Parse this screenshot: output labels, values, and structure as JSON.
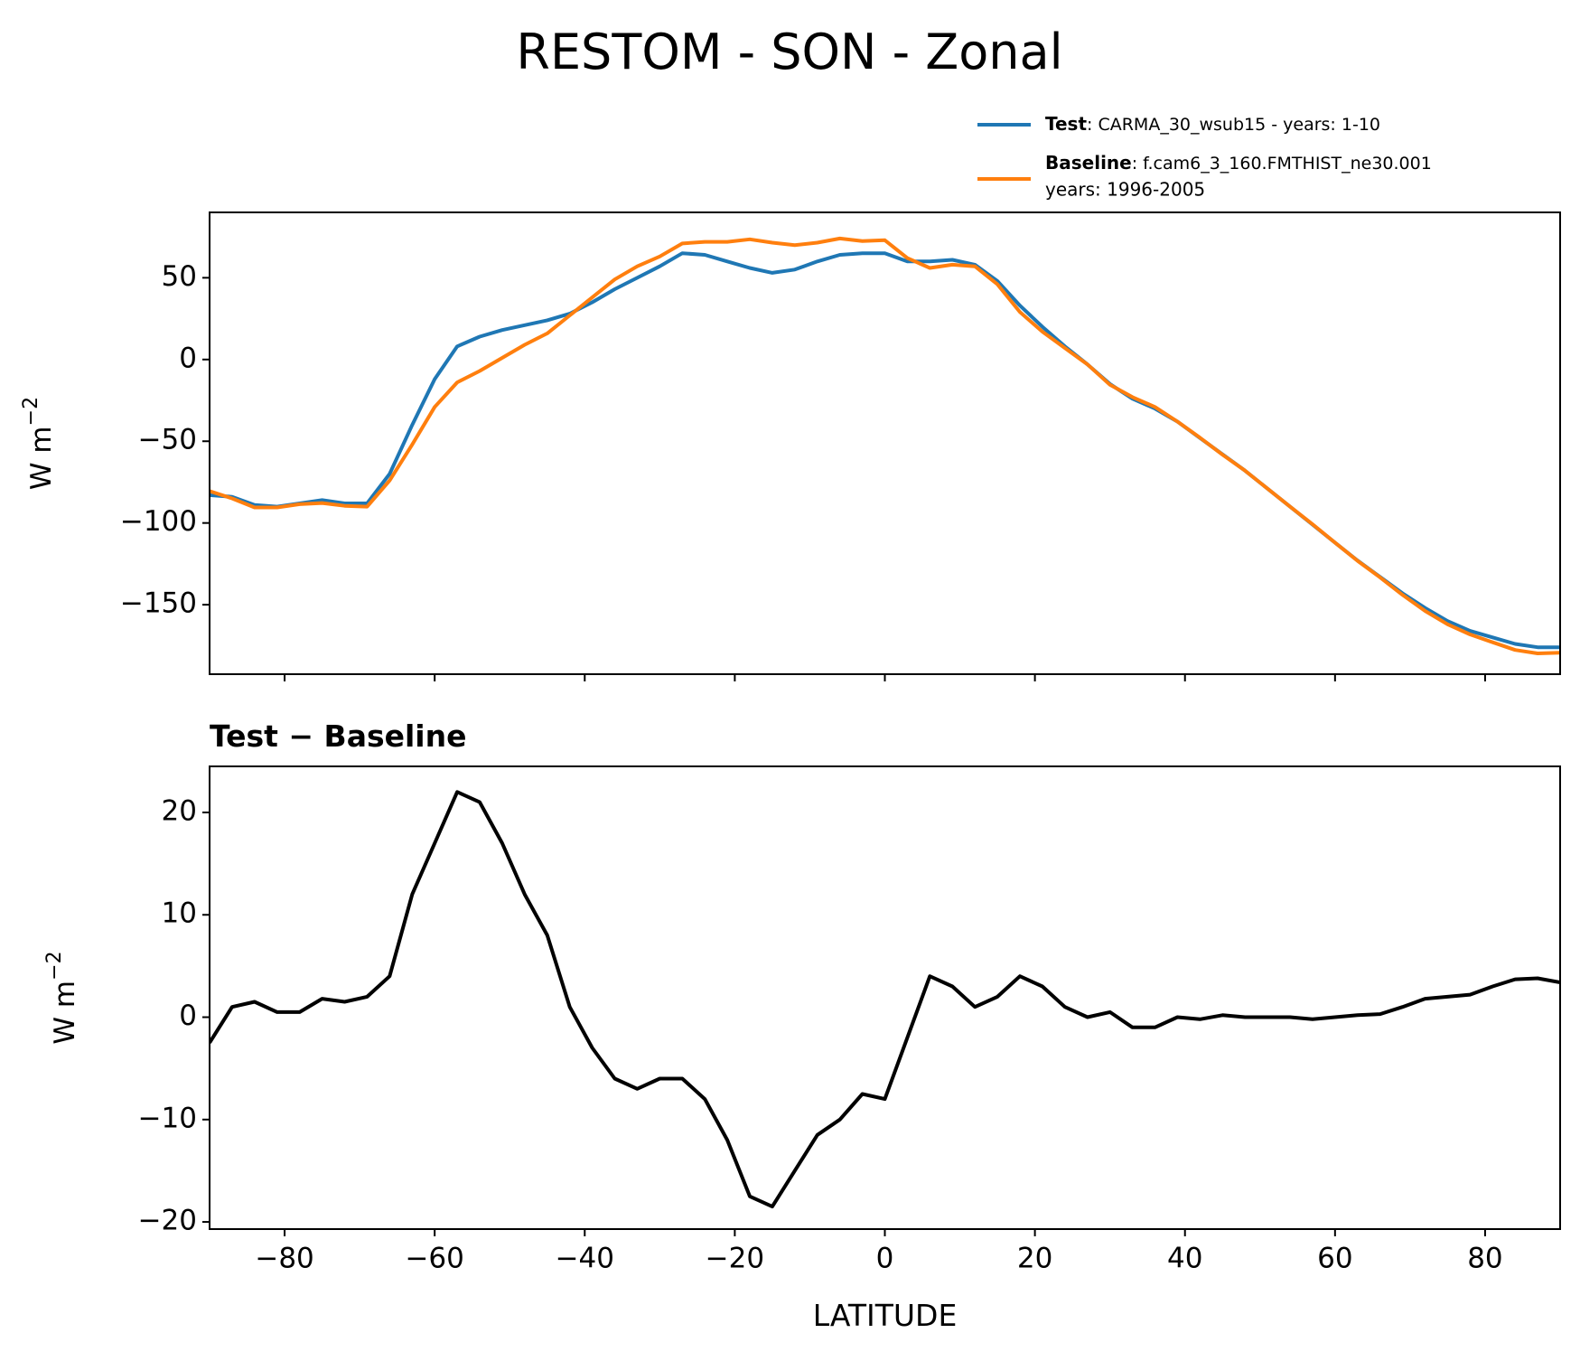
{
  "chart_data": [
    {
      "type": "line",
      "title": "RESTOM - SON - Zonal",
      "ylabel": "W m",
      "ylabel_exponent": "−2",
      "x": [
        -90,
        -87,
        -84,
        -81,
        -78,
        -75,
        -72,
        -69,
        -66,
        -63,
        -60,
        -57,
        -54,
        -51,
        -48,
        -45,
        -42,
        -39,
        -36,
        -33,
        -30,
        -27,
        -24,
        -21,
        -18,
        -15,
        -12,
        -9,
        -6,
        -3,
        0,
        3,
        6,
        9,
        12,
        15,
        18,
        21,
        24,
        27,
        30,
        33,
        36,
        39,
        42,
        45,
        48,
        51,
        54,
        57,
        60,
        63,
        66,
        69,
        72,
        75,
        78,
        81,
        84,
        87,
        90
      ],
      "series": [
        {
          "name": "Test",
          "label": ": CARMA_30_wsub15 - years: 1-10",
          "color": "#1f77b4",
          "values": [
            -83,
            -84,
            -89,
            -90,
            -88,
            -86,
            -88,
            -88,
            -70,
            -40,
            -12,
            8,
            14,
            18,
            21,
            24,
            28,
            35,
            43,
            50,
            57,
            65,
            64,
            60,
            56,
            53,
            55,
            60,
            64,
            65,
            65,
            60,
            60,
            61,
            58,
            48,
            33,
            20,
            8,
            -3,
            -15,
            -24,
            -30,
            -38,
            -48,
            -58,
            -68,
            -79,
            -90,
            -101,
            -112,
            -123,
            -133,
            -143,
            -152,
            -160,
            -166,
            -170,
            -174,
            -176,
            -176
          ]
        },
        {
          "name": "Baseline",
          "label": ": f.cam6_3_160.FMTHIST_ne30.001",
          "label_line2": "years: 1996-2005",
          "color": "#ff7f0e",
          "values": [
            -80.5,
            -85,
            -90.5,
            -90.5,
            -88.5,
            -87.8,
            -89.5,
            -90,
            -74,
            -52,
            -29,
            -14,
            -7,
            1,
            9,
            16,
            27,
            38,
            49,
            57,
            63,
            71,
            72,
            72,
            73.5,
            71.5,
            70,
            71.5,
            74,
            72.5,
            73,
            62,
            56,
            58,
            57,
            46,
            29,
            17,
            7,
            -3,
            -15.5,
            -23,
            -29,
            -38,
            -47.8,
            -58.2,
            -68,
            -79,
            -90,
            -100.8,
            -112,
            -123.2,
            -133.3,
            -144,
            -153.8,
            -162,
            -168.2,
            -173,
            -177.7,
            -179.8,
            -179.4
          ]
        }
      ],
      "xlim": [
        -90,
        90
      ],
      "xticks": [
        -80,
        -60,
        -40,
        -20,
        0,
        20,
        40,
        60,
        80
      ],
      "ylim": [
        -192.5,
        90
      ],
      "yticks": [
        {
          "value": -150,
          "label": "−150"
        },
        {
          "value": -100,
          "label": "−100"
        },
        {
          "value": -50,
          "label": "−50"
        },
        0,
        50
      ]
    },
    {
      "type": "line",
      "title": "Test − Baseline",
      "xlabel": "LATITUDE",
      "ylabel": "W m",
      "ylabel_exponent": "−2",
      "x": [
        -90,
        -87,
        -84,
        -81,
        -78,
        -75,
        -72,
        -69,
        -66,
        -63,
        -60,
        -57,
        -54,
        -51,
        -48,
        -45,
        -42,
        -39,
        -36,
        -33,
        -30,
        -27,
        -24,
        -21,
        -18,
        -15,
        -12,
        -9,
        -6,
        -3,
        0,
        3,
        6,
        9,
        12,
        15,
        18,
        21,
        24,
        27,
        30,
        33,
        36,
        39,
        42,
        45,
        48,
        51,
        54,
        57,
        60,
        63,
        66,
        69,
        72,
        75,
        78,
        81,
        84,
        87,
        90
      ],
      "series": [
        {
          "color": "#000000",
          "values": [
            -2.5,
            1,
            1.5,
            0.5,
            0.5,
            1.8,
            1.5,
            2,
            4,
            12,
            17,
            22,
            21,
            17,
            12,
            8,
            1,
            -3,
            -6,
            -7,
            -6,
            -6,
            -8,
            -12,
            -17.5,
            -18.5,
            -15,
            -11.5,
            -10,
            -7.5,
            -8,
            -2,
            4,
            3,
            1,
            2,
            4,
            3,
            1,
            0,
            0.5,
            -1,
            -1,
            0,
            -0.2,
            0.2,
            0,
            0,
            0,
            -0.2,
            0,
            0.2,
            0.3,
            1,
            1.8,
            2,
            2.2,
            3,
            3.7,
            3.8,
            3.4
          ]
        }
      ],
      "xlim": [
        -90,
        90
      ],
      "xticks": [
        {
          "value": -80,
          "label": "−80"
        },
        {
          "value": -60,
          "label": "−60"
        },
        {
          "value": -40,
          "label": "−40"
        },
        {
          "value": -20,
          "label": "−20"
        },
        0,
        20,
        40,
        60,
        80
      ],
      "ylim": [
        -20.7,
        24.5
      ],
      "yticks": [
        {
          "value": -20,
          "label": "−20"
        },
        {
          "value": -10,
          "label": "−10"
        },
        0,
        10,
        20
      ]
    }
  ]
}
